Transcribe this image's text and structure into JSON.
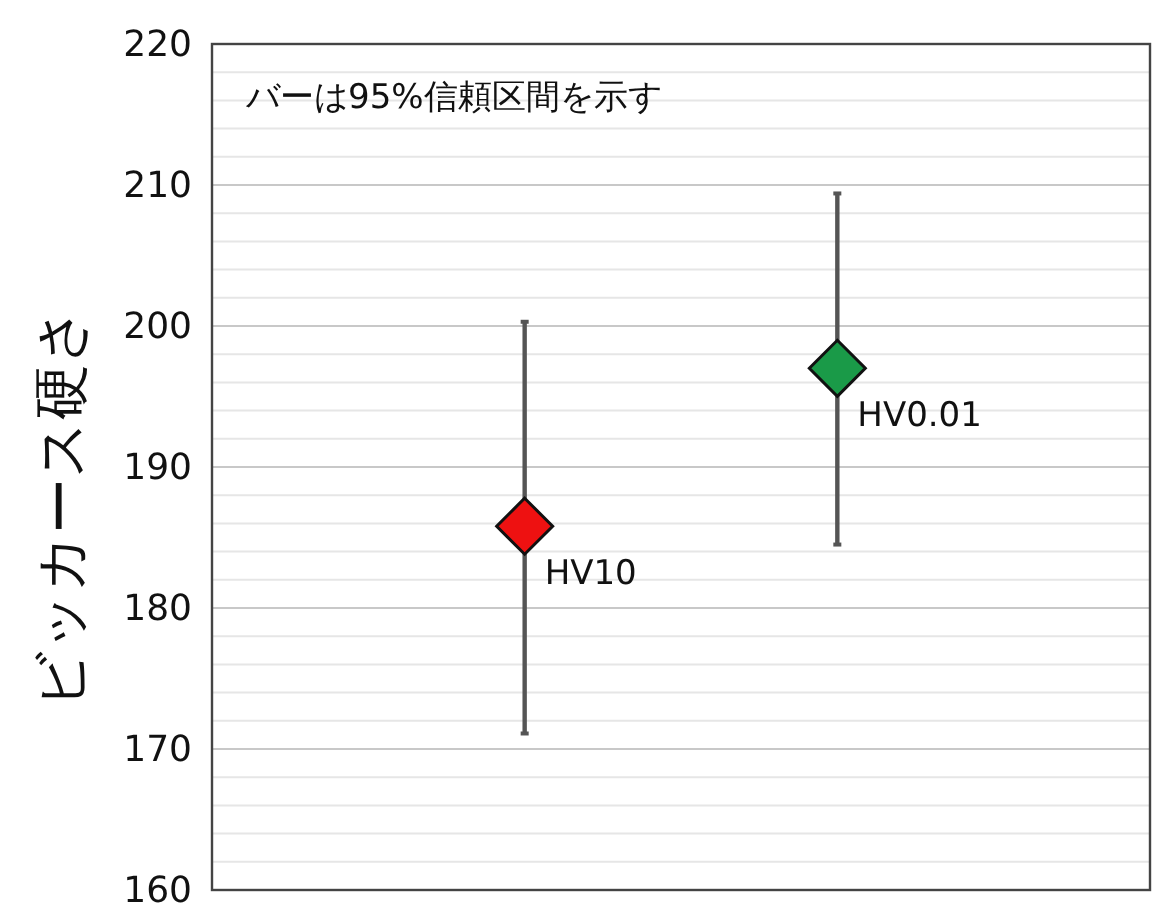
{
  "chart_data": {
    "type": "scatter",
    "ylabel": "ビッカース硬さ",
    "annotations": [
      "バーは95%信頼区間を示す"
    ],
    "categories": [
      null,
      null
    ],
    "series": [
      {
        "name": "HV10",
        "color": "#ee1111",
        "values": [
          185.8,
          null
        ],
        "errors": [
          [
            171.1,
            200.3
          ],
          null
        ]
      },
      {
        "name": "HV0.01",
        "color": "#1a9a48",
        "values": [
          null,
          197.0
        ],
        "errors": [
          null,
          [
            184.5,
            209.4
          ]
        ]
      }
    ],
    "marker": "diamond",
    "ylim": [
      160,
      220
    ],
    "yticks": [
      160,
      {
        "value": 162,
        "label": null
      },
      {
        "value": 164,
        "label": null
      },
      {
        "value": 166,
        "label": null
      },
      {
        "value": 168,
        "label": null
      },
      170,
      {
        "value": 172,
        "label": null
      },
      {
        "value": 174,
        "label": null
      },
      {
        "value": 176,
        "label": null
      },
      {
        "value": 178,
        "label": null
      },
      180,
      {
        "value": 182,
        "label": null
      },
      {
        "value": 184,
        "label": null
      },
      {
        "value": 186,
        "label": null
      },
      {
        "value": 188,
        "label": null
      },
      190,
      {
        "value": 192,
        "label": null
      },
      {
        "value": 194,
        "label": null
      },
      {
        "value": 196,
        "label": null
      },
      {
        "value": 198,
        "label": null
      },
      200,
      {
        "value": 202,
        "label": null
      },
      {
        "value": 204,
        "label": null
      },
      {
        "value": 206,
        "label": null
      },
      {
        "value": 208,
        "label": null
      },
      210,
      {
        "value": 212,
        "label": null
      },
      {
        "value": 214,
        "label": null
      },
      {
        "value": 216,
        "label": null
      },
      {
        "value": 218,
        "label": null
      },
      220
    ],
    "grid": "y"
  }
}
